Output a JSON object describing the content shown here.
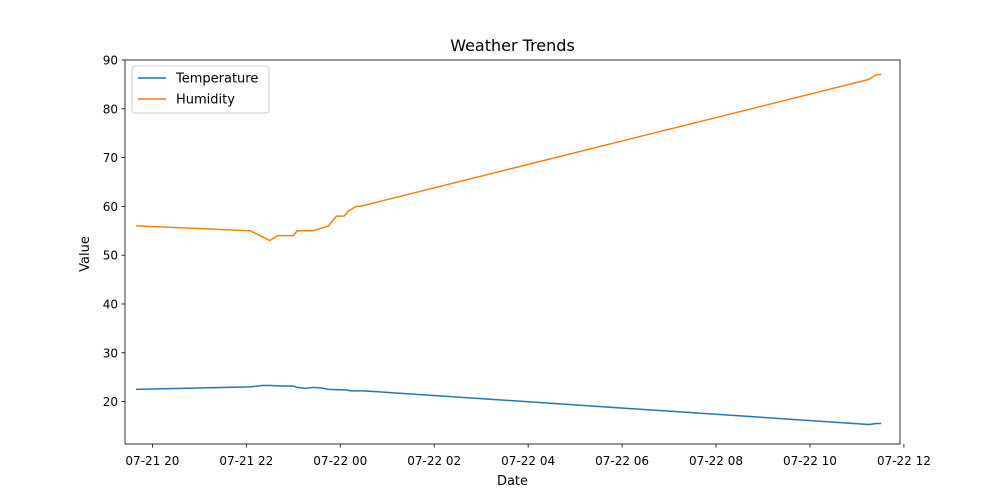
{
  "chart_data": {
    "type": "line",
    "title": "Weather Trends",
    "xlabel": "Date",
    "ylabel": "Value",
    "xlim": [
      "2024-07-21T19:25",
      "2024-07-22T11:55"
    ],
    "ylim": [
      11.3,
      90
    ],
    "x_ticks": [
      {
        "label": "07-21 20",
        "value": "2024-07-21T20:00"
      },
      {
        "label": "07-21 22",
        "value": "2024-07-21T22:00"
      },
      {
        "label": "07-22 00",
        "value": "2024-07-22T00:00"
      },
      {
        "label": "07-22 02",
        "value": "2024-07-22T02:00"
      },
      {
        "label": "07-22 04",
        "value": "2024-07-22T04:00"
      },
      {
        "label": "07-22 06",
        "value": "2024-07-22T06:00"
      },
      {
        "label": "07-22 08",
        "value": "2024-07-22T08:00"
      },
      {
        "label": "07-22 10",
        "value": "2024-07-22T10:00"
      },
      {
        "label": "07-22 12",
        "value": "2024-07-22T12:00"
      }
    ],
    "y_ticks": [
      {
        "label": "20",
        "value": 20
      },
      {
        "label": "30",
        "value": 30
      },
      {
        "label": "40",
        "value": 40
      },
      {
        "label": "50",
        "value": 50
      },
      {
        "label": "60",
        "value": 60
      },
      {
        "label": "70",
        "value": 70
      },
      {
        "label": "80",
        "value": 80
      },
      {
        "label": "90",
        "value": 90
      }
    ],
    "grid": false,
    "legend_position": "upper-left",
    "series": [
      {
        "name": "Temperature",
        "color": "#1f77b4",
        "points": [
          {
            "x": "2024-07-21T19:40",
            "y": 22.5
          },
          {
            "x": "2024-07-21T22:05",
            "y": 23.0
          },
          {
            "x": "2024-07-21T22:20",
            "y": 23.3
          },
          {
            "x": "2024-07-21T22:30",
            "y": 23.3
          },
          {
            "x": "2024-07-21T22:45",
            "y": 23.2
          },
          {
            "x": "2024-07-21T23:00",
            "y": 23.2
          },
          {
            "x": "2024-07-21T23:05",
            "y": 22.9
          },
          {
            "x": "2024-07-21T23:15",
            "y": 22.7
          },
          {
            "x": "2024-07-21T23:25",
            "y": 22.9
          },
          {
            "x": "2024-07-21T23:35",
            "y": 22.8
          },
          {
            "x": "2024-07-21T23:45",
            "y": 22.5
          },
          {
            "x": "2024-07-22T00:05",
            "y": 22.4
          },
          {
            "x": "2024-07-22T00:15",
            "y": 22.2
          },
          {
            "x": "2024-07-22T00:30",
            "y": 22.2
          },
          {
            "x": "2024-07-22T11:15",
            "y": 15.3
          },
          {
            "x": "2024-07-22T11:25",
            "y": 15.5
          },
          {
            "x": "2024-07-22T11:30",
            "y": 15.5
          }
        ]
      },
      {
        "name": "Humidity",
        "color": "#ff7f0e",
        "points": [
          {
            "x": "2024-07-21T19:40",
            "y": 56
          },
          {
            "x": "2024-07-21T22:05",
            "y": 55
          },
          {
            "x": "2024-07-21T22:30",
            "y": 53
          },
          {
            "x": "2024-07-21T22:40",
            "y": 54
          },
          {
            "x": "2024-07-21T23:00",
            "y": 54
          },
          {
            "x": "2024-07-21T23:05",
            "y": 55
          },
          {
            "x": "2024-07-21T23:25",
            "y": 55
          },
          {
            "x": "2024-07-21T23:45",
            "y": 56
          },
          {
            "x": "2024-07-21T23:55",
            "y": 58
          },
          {
            "x": "2024-07-22T00:05",
            "y": 58
          },
          {
            "x": "2024-07-22T00:10",
            "y": 59
          },
          {
            "x": "2024-07-22T00:20",
            "y": 60
          },
          {
            "x": "2024-07-22T00:25",
            "y": 60
          },
          {
            "x": "2024-07-22T11:15",
            "y": 86
          },
          {
            "x": "2024-07-22T11:25",
            "y": 87
          },
          {
            "x": "2024-07-22T11:30",
            "y": 87
          }
        ]
      }
    ]
  }
}
